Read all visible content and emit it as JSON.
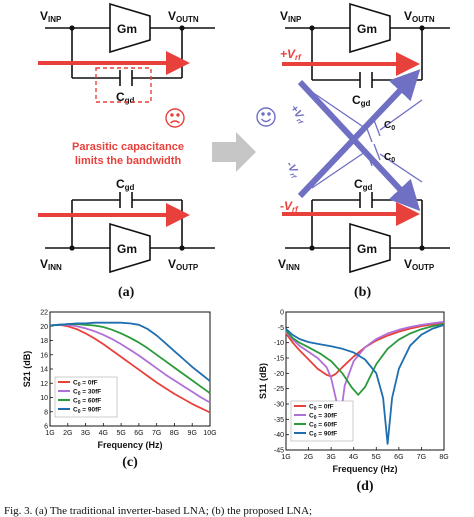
{
  "circuit_a": {
    "vinp": "V",
    "vinp_sub": "INP",
    "voutn": "V",
    "voutn_sub": "OUTN",
    "vinn": "V",
    "vinn_sub": "INN",
    "voutp": "V",
    "voutp_sub": "OUTP",
    "gm_top": "Gm",
    "gm_bottom": "Gm",
    "cgd_top": "C",
    "cgd_top_sub": "gd",
    "cgd_bottom": "C",
    "cgd_bottom_sub": "gd",
    "note_line1": "Parasitic capacitance",
    "note_line2": "limits the bandwidth",
    "panel_label": "(a)"
  },
  "circuit_b": {
    "vinp": "V",
    "vinp_sub": "INP",
    "voutn": "V",
    "voutn_sub": "OUTN",
    "vinn": "V",
    "vinn_sub": "INN",
    "voutp": "V",
    "voutp_sub": "OUTP",
    "gm_top": "Gm",
    "gm_bottom": "Gm",
    "cgd_top": "C",
    "cgd_top_sub": "gd",
    "cgd_bottom": "C",
    "cgd_bottom_sub": "gd",
    "plus_vrf": "+V",
    "plus_vrf_sub": "rf",
    "minus_vrf": "-V",
    "minus_vrf_sub": "rf",
    "diag_plus": "+V",
    "diag_plus_sub": "rf",
    "diag_minus": "-V",
    "diag_minus_sub": "rf",
    "c0_top": "C",
    "c0_top_sub": "0",
    "c0_bottom": "C",
    "c0_bottom_sub": "0",
    "panel_label": "(b)"
  },
  "colors": {
    "red": "#e8413c",
    "blue": "#6f6fc4",
    "gray": "#c6c6c6",
    "c0ff": "#e8413c",
    "c30ff": "#b06fd8",
    "c60ff": "#2a9a3a",
    "c90ff": "#1f6fb0"
  },
  "chart_data": [
    {
      "type": "line",
      "panel_label": "(c)",
      "ylabel": "S21 (dB)",
      "xlabel": "Frequency (Hz)",
      "xlim": [
        1,
        10
      ],
      "ylim": [
        6,
        22
      ],
      "xticks": [
        "1G",
        "2G",
        "3G",
        "4G",
        "5G",
        "6G",
        "7G",
        "8G",
        "9G",
        "10G"
      ],
      "yticks": [
        "6",
        "8",
        "10",
        "12",
        "14",
        "16",
        "18",
        "20",
        "22"
      ],
      "legend_position": "bottom-left",
      "series": [
        {
          "name": "C",
          "sub": "0",
          "suffix": " = 0fF",
          "color": "#e8413c",
          "x": [
            1,
            1.5,
            2,
            2.5,
            3,
            3.5,
            4,
            4.5,
            5,
            5.5,
            6,
            6.5,
            7,
            7.5,
            8,
            8.5,
            9,
            9.5,
            10
          ],
          "y": [
            20.1,
            20.2,
            20.0,
            19.6,
            19.0,
            18.3,
            17.5,
            16.6,
            15.7,
            14.8,
            13.9,
            13.0,
            12.1,
            11.3,
            10.5,
            9.8,
            9.1,
            8.5,
            7.9
          ]
        },
        {
          "name": "C",
          "sub": "0",
          "suffix": " = 30fF",
          "color": "#b06fd8",
          "x": [
            1,
            1.5,
            2,
            2.5,
            3,
            3.5,
            4,
            4.5,
            5,
            5.5,
            6,
            6.5,
            7,
            7.5,
            8,
            8.5,
            9,
            9.5,
            10
          ],
          "y": [
            20.1,
            20.2,
            20.2,
            20.0,
            19.7,
            19.3,
            18.8,
            18.2,
            17.5,
            16.7,
            15.9,
            15.0,
            14.1,
            13.2,
            12.4,
            11.6,
            10.8,
            10.0,
            9.3
          ]
        },
        {
          "name": "C",
          "sub": "0",
          "suffix": " = 60fF",
          "color": "#2a9a3a",
          "x": [
            1,
            1.5,
            2,
            2.5,
            3,
            3.5,
            4,
            4.5,
            5,
            5.5,
            6,
            6.5,
            7,
            7.5,
            8,
            8.5,
            9,
            9.5,
            10
          ],
          "y": [
            20.1,
            20.2,
            20.3,
            20.3,
            20.2,
            20.1,
            19.9,
            19.5,
            19.0,
            18.4,
            17.7,
            16.9,
            16.0,
            15.1,
            14.2,
            13.3,
            12.4,
            11.5,
            10.6
          ]
        },
        {
          "name": "C",
          "sub": "0",
          "suffix": " = 90fF",
          "color": "#1f6fb0",
          "x": [
            1,
            1.5,
            2,
            2.5,
            3,
            3.5,
            4,
            4.5,
            5,
            5.5,
            6,
            6.5,
            7,
            7.5,
            8,
            8.5,
            9,
            9.5,
            10
          ],
          "y": [
            20.1,
            20.2,
            20.3,
            20.4,
            20.4,
            20.5,
            20.5,
            20.5,
            20.5,
            20.4,
            20.2,
            19.6,
            18.7,
            17.6,
            16.5,
            15.4,
            14.3,
            13.3,
            12.3
          ]
        }
      ]
    },
    {
      "type": "line",
      "panel_label": "(d)",
      "ylabel": "S11 (dB)",
      "xlabel": "Frequency (Hz)",
      "xlim": [
        1,
        8
      ],
      "ylim": [
        -45,
        0
      ],
      "xticks": [
        "1G",
        "2G",
        "3G",
        "4G",
        "5G",
        "6G",
        "7G",
        "8G"
      ],
      "yticks": [
        "0",
        "-5",
        "-10",
        "-15",
        "-20",
        "-25",
        "-30",
        "-35",
        "-40",
        "-45"
      ],
      "legend_position": "bottom-left",
      "series": [
        {
          "name": "C",
          "sub": "0",
          "suffix": " = 0fF",
          "color": "#e8413c",
          "x": [
            1,
            1.3,
            1.6,
            2,
            2.4,
            2.8,
            3.0,
            3.2,
            3.5,
            4,
            4.5,
            5,
            5.5,
            6,
            6.5,
            7,
            7.5,
            8
          ],
          "y": [
            -7,
            -10,
            -12.5,
            -15.5,
            -18.5,
            -20.5,
            -21,
            -20.2,
            -18,
            -14.5,
            -11.5,
            -9.3,
            -7.7,
            -6.4,
            -5.4,
            -4.6,
            -4,
            -3.5
          ]
        },
        {
          "name": "C",
          "sub": "0",
          "suffix": " = 30fF",
          "color": "#b06fd8",
          "x": [
            1,
            1.3,
            1.6,
            2,
            2.4,
            2.8,
            3.0,
            3.2,
            3.4,
            3.6,
            4,
            4.5,
            5,
            5.5,
            6,
            6.5,
            7,
            7.5,
            8
          ],
          "y": [
            -6.5,
            -9,
            -11,
            -13,
            -15,
            -18,
            -21.5,
            -28,
            -35,
            -24,
            -16,
            -11.5,
            -8.8,
            -7,
            -5.8,
            -4.9,
            -4.2,
            -3.7,
            -3.2
          ]
        },
        {
          "name": "C",
          "sub": "0",
          "suffix": " = 60fF",
          "color": "#2a9a3a",
          "x": [
            1,
            1.3,
            1.6,
            2,
            2.5,
            3,
            3.5,
            3.9,
            4.2,
            4.5,
            5,
            5.5,
            6,
            6.5,
            7,
            7.5,
            8
          ],
          "y": [
            -6,
            -8.5,
            -10,
            -11.5,
            -13.5,
            -16,
            -20,
            -24.5,
            -27,
            -24.5,
            -17,
            -12,
            -9,
            -7,
            -5.6,
            -4.6,
            -3.9
          ]
        },
        {
          "name": "C",
          "sub": "0",
          "suffix": " = 90fF",
          "color": "#1f6fb0",
          "x": [
            1,
            1.3,
            1.6,
            2,
            2.5,
            3,
            3.5,
            4,
            4.5,
            5,
            5.3,
            5.5,
            5.7,
            6,
            6.5,
            7,
            7.5,
            8
          ],
          "y": [
            -5.5,
            -7.5,
            -8.8,
            -9.8,
            -10.5,
            -11.2,
            -12,
            -13.2,
            -15.5,
            -20,
            -28,
            -43,
            -28,
            -18.5,
            -11,
            -7.4,
            -5.4,
            -4.2
          ]
        }
      ]
    }
  ],
  "caption": "Fig. 3.   (a) The traditional inverter-based LNA; (b) the proposed LNA;"
}
